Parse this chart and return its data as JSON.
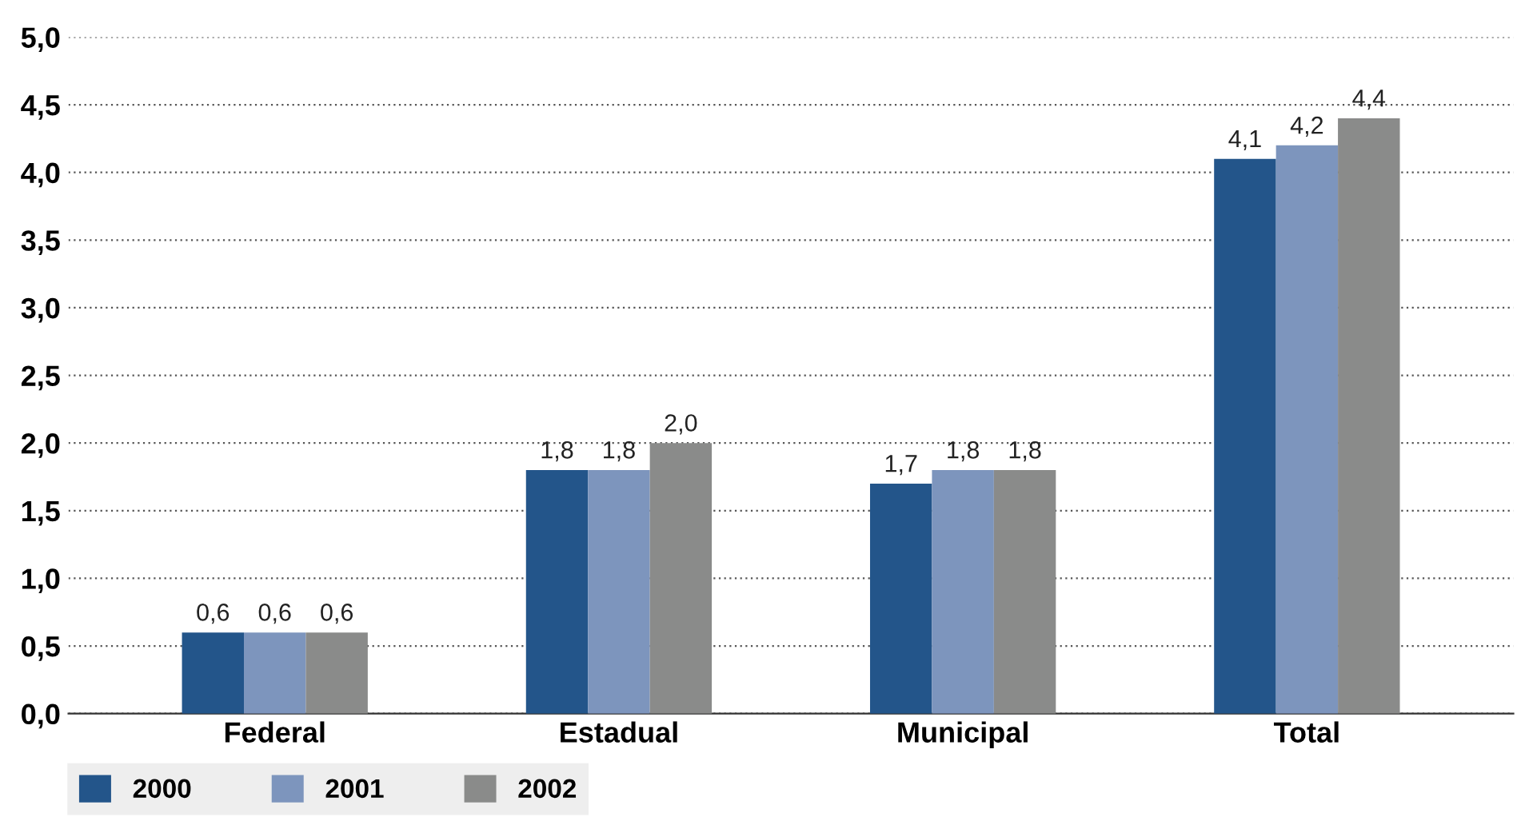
{
  "chart_data": {
    "type": "bar",
    "categories": [
      "Federal",
      "Estadual",
      "Municipal",
      "Total"
    ],
    "series": [
      {
        "name": "2000",
        "color": "#23558a",
        "values": [
          0.6,
          1.8,
          1.7,
          4.1
        ],
        "value_labels": [
          "0,6",
          "1,8",
          "1,7",
          "4,1"
        ]
      },
      {
        "name": "2001",
        "color": "#7d95bd",
        "values": [
          0.6,
          1.8,
          1.8,
          4.2
        ],
        "value_labels": [
          "0,6",
          "1,8",
          "1,8",
          "4,2"
        ]
      },
      {
        "name": "2002",
        "color": "#8a8b8a",
        "values": [
          0.6,
          2.0,
          1.8,
          4.4
        ],
        "value_labels": [
          "0,6",
          "2,0",
          "1,8",
          "4,4"
        ]
      }
    ],
    "ylim": [
      0,
      5
    ],
    "yticks": [
      {
        "value": 0,
        "label": "0,0"
      },
      {
        "value": 0.5,
        "label": "0,5"
      },
      {
        "value": 1,
        "label": "1,0"
      },
      {
        "value": 1.5,
        "label": "1,5"
      },
      {
        "value": 2,
        "label": "2,0"
      },
      {
        "value": 2.5,
        "label": "2,5"
      },
      {
        "value": 3,
        "label": "3,0"
      },
      {
        "value": 3.5,
        "label": "3,5"
      },
      {
        "value": 4,
        "label": "4,0"
      },
      {
        "value": 4.5,
        "label": "4,5"
      },
      {
        "value": 5,
        "label": "5,0"
      }
    ],
    "grid": "y",
    "legend": "bottom"
  }
}
